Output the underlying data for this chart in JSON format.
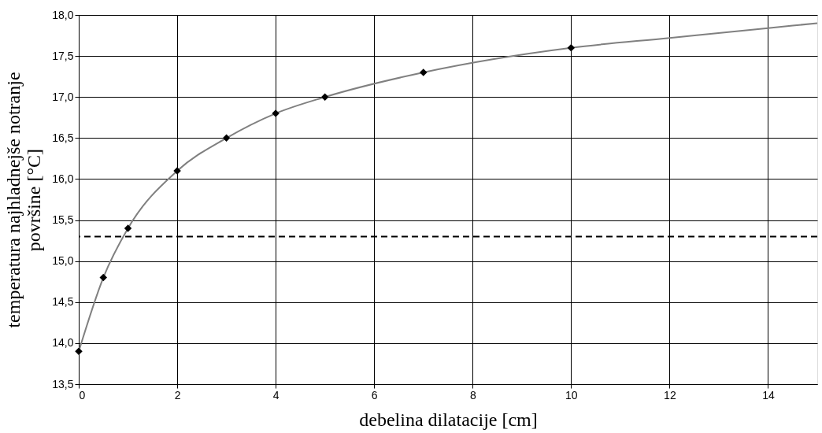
{
  "chart_data": {
    "type": "scatter",
    "xlabel": "debelina dilatacije [cm]",
    "ylabel": "temperatura najhladnejše notranje\npovršine [°C]",
    "xlim": [
      0,
      15
    ],
    "xticks": [
      0,
      2,
      4,
      6,
      8,
      10,
      12,
      14
    ],
    "ylim": [
      13.5,
      18
    ],
    "yticks": [
      {
        "value": 13.5,
        "label": "13,5"
      },
      {
        "value": 14,
        "label": "14,0"
      },
      {
        "value": 14.5,
        "label": "14,5"
      },
      {
        "value": 15,
        "label": "15,0"
      },
      {
        "value": 15.5,
        "label": "15,5"
      },
      {
        "value": 16,
        "label": "16,0"
      },
      {
        "value": 16.5,
        "label": "16,5"
      },
      {
        "value": 17,
        "label": "17,0"
      },
      {
        "value": 17.5,
        "label": "17,5"
      },
      {
        "value": 18,
        "label": "18,0"
      }
    ],
    "grid": true,
    "series": [
      {
        "type": "line",
        "color": "#808080",
        "line_style": "solid",
        "marker": "none",
        "x": [
          0,
          0.5,
          1,
          2,
          3,
          4,
          5,
          7,
          10,
          12,
          14,
          15
        ],
        "values": [
          13.9,
          14.8,
          15.4,
          16.1,
          16.5,
          16.8,
          17.0,
          17.3,
          17.6,
          17.72,
          17.84,
          17.9
        ]
      },
      {
        "type": "scatter",
        "color": "#000000",
        "marker": "diamond",
        "x": [
          0,
          0.5,
          1,
          2,
          3,
          4,
          5,
          7,
          10
        ],
        "values": [
          13.9,
          14.8,
          15.4,
          16.1,
          16.5,
          16.8,
          17.0,
          17.3,
          17.6
        ]
      }
    ],
    "ref_lines": [
      {
        "axis": "y",
        "value": 15.3,
        "color": "#000000",
        "line_style": "dashed"
      }
    ]
  }
}
